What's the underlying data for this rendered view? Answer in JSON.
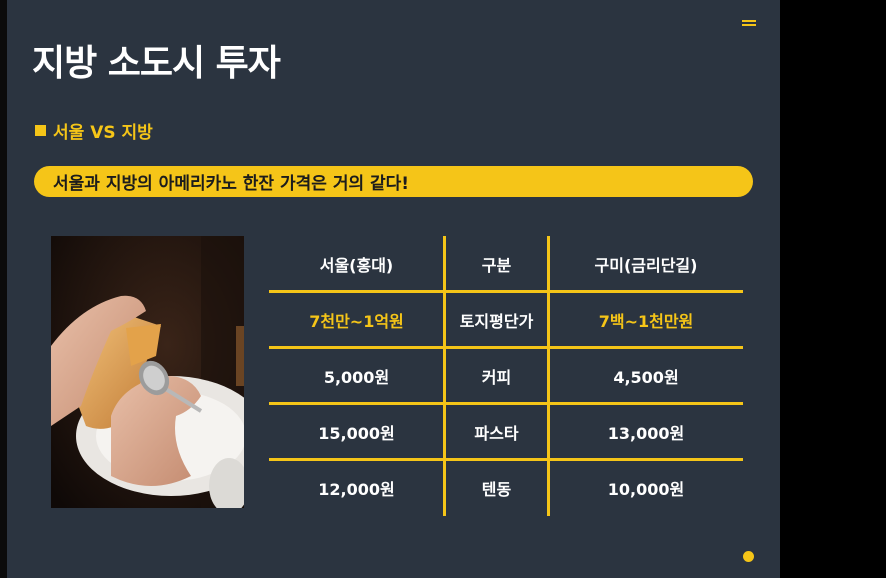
{
  "slide": {
    "title": "지방 소도시 투자",
    "subtitle": "서울 VS 지방",
    "banner": "서울과 지방의 아메리카노 한잔 가격은 거의 같다!",
    "menu_icon": "hamburger-icon",
    "bullet_icon": "square-bullet-icon"
  },
  "table": {
    "headers": [
      "서울(홍대)",
      "구분",
      "구미(금리단길)"
    ],
    "rows": [
      [
        "7천만~1억원",
        "토지평단가",
        "7백~1천만원"
      ],
      [
        "5,000원",
        "커피",
        "4,500원"
      ],
      [
        "15,000원",
        "파스타",
        "13,000원"
      ],
      [
        "12,000원",
        "텐동",
        "10,000원"
      ]
    ]
  },
  "colors": {
    "accent": "#f5c518",
    "background": "#2b3440"
  }
}
